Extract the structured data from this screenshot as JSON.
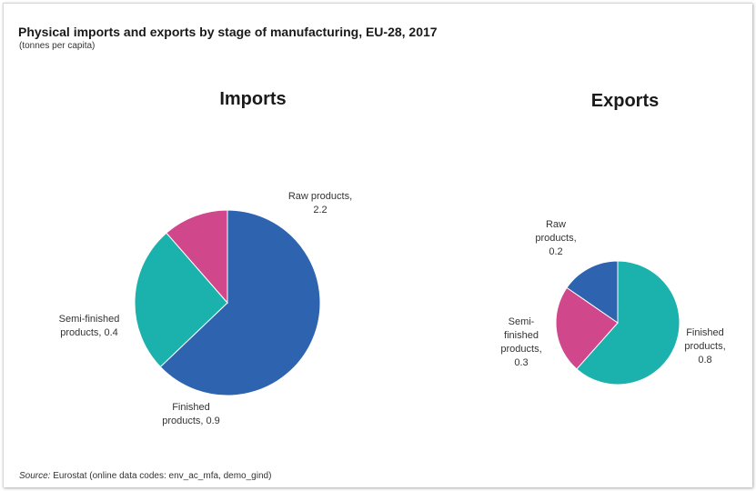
{
  "title": "Physical imports and exports by stage of manufacturing, EU-28, 2017",
  "subtitle": "(tonnes per capita)",
  "source": {
    "label": "Source:",
    "text": "Eurostat (online data codes: env_ac_mfa, demo_gind)"
  },
  "colors": {
    "raw": "#2e63b0",
    "finished": "#1bb1ac",
    "semi": "#d1478c"
  },
  "chart_data": [
    {
      "type": "pie",
      "title": "Imports",
      "slices": [
        {
          "name": "Raw products",
          "value": 2.2,
          "label_lines": [
            "Raw products,",
            "2.2"
          ],
          "color": "#2e63b0"
        },
        {
          "name": "Finished products",
          "value": 0.9,
          "label_lines": [
            "Finished",
            "products, 0.9"
          ],
          "color": "#1bb1ac"
        },
        {
          "name": "Semi-finished products",
          "value": 0.4,
          "label_lines": [
            "Semi-finished",
            "products, 0.4"
          ],
          "color": "#d1478c"
        }
      ]
    },
    {
      "type": "pie",
      "title": "Exports",
      "slices": [
        {
          "name": "Finished products",
          "value": 0.8,
          "label_lines": [
            "Finished",
            "products,",
            "0.8"
          ],
          "color": "#1bb1ac"
        },
        {
          "name": "Semi-finished products",
          "value": 0.3,
          "label_lines": [
            "Semi-",
            "finished",
            "products,",
            "0.3"
          ],
          "color": "#d1478c"
        },
        {
          "name": "Raw products",
          "value": 0.2,
          "label_lines": [
            "Raw",
            "products,",
            "0.2"
          ],
          "color": "#2e63b0"
        }
      ]
    }
  ]
}
